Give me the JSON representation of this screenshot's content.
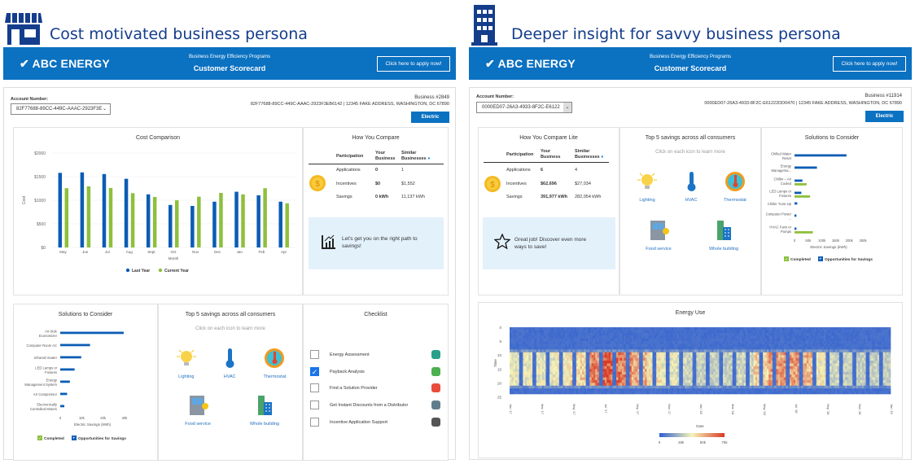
{
  "colors": {
    "brand_blue": "#0b71c1",
    "persona_title": "#143d8c",
    "last_year": "#0b5cb5",
    "current_year": "#8dc03c",
    "opportunities": "#0b5cb5",
    "completed": "#8dc03c",
    "promo_bg": "#e3f1fb"
  },
  "left": {
    "persona_icon": "storefront-icon",
    "persona_title": "Cost motivated business persona",
    "header": {
      "logo": "ABC ENERGY",
      "subtitle": "Business Energy Efficiency Programs",
      "title": "Customer Scorecard",
      "apply_button": "Click here to apply now!"
    },
    "account_label": "Account Number:",
    "account_value": "82F77688-89CC-449C-AAAC-2923F3E",
    "business_number": "Business #2849",
    "business_address": "82F77688-89CC-449C-AAAC-2923F3EB6142 | 12345 FAKE ADDRESS, WASHINGTON, DC 67890",
    "electric_button": "Electric",
    "cost_title": "Cost Comparison",
    "compare": {
      "title": "How You Compare",
      "headers": [
        "Participation",
        "Your Business",
        "Similar Businesses"
      ],
      "rows": [
        {
          "label": "Applications",
          "yours": "0",
          "similar": "1"
        },
        {
          "label": "Incentives",
          "yours": "$0",
          "similar": "$1,552"
        },
        {
          "label": "Savings",
          "yours": "0 kWh",
          "similar": "11,137 kWh"
        }
      ],
      "promo": "Let's get you on the right path to savings!",
      "promo_icon": "bar-chart-growth-icon"
    },
    "solutions_title": "Solutions to Consider",
    "top5": {
      "title": "Top 5 savings across all consumers",
      "hint": "Click on each icon to learn more",
      "items": [
        "Lighting",
        "HVAC",
        "Thermostat",
        "Food service",
        "Whole building"
      ]
    },
    "checklist": {
      "title": "Checklist",
      "items": [
        {
          "label": "Energy Assessment",
          "checked": false,
          "icon": "gauge-icon"
        },
        {
          "label": "Payback Analysis",
          "checked": true,
          "icon": "money-icon"
        },
        {
          "label": "Find a Solution Provider",
          "checked": false,
          "icon": "chat-icon"
        },
        {
          "label": "Get Instant Discounts from a Distributor",
          "checked": false,
          "icon": "register-icon"
        },
        {
          "label": "Incentive Application Support",
          "checked": false,
          "icon": "form-icon"
        }
      ]
    }
  },
  "right": {
    "persona_icon": "office-building-icon",
    "persona_title": "Deeper insight for savvy business persona",
    "header": {
      "logo": "ABC ENERGY",
      "subtitle": "Business Energy Efficiency Programs",
      "title": "Customer Scorecard",
      "apply_button": "Click here to apply now!"
    },
    "account_label": "Account Number:",
    "account_value": "0000ED07-26A3-4933-8F2C-E6122",
    "business_number": "Business #11914",
    "business_address": "0000ED07-26A3-4933-8F2C-E61222DD0470 | 12345 FAKE ADDRESS, WASHINGTON, DC 67890",
    "electric_button": "Electric",
    "compare": {
      "title": "How You Compare Lite",
      "headers": [
        "Participation",
        "Your Business",
        "Similar Businesses"
      ],
      "rows": [
        {
          "label": "Applications",
          "yours": "6",
          "similar": "4"
        },
        {
          "label": "Incentives",
          "yours": "$62,696",
          "similar": "$27,034"
        },
        {
          "label": "Savings",
          "yours": "391,977 kWh",
          "similar": "282,054 kWh"
        }
      ],
      "promo": "Great job! Discover even more ways to save!",
      "promo_icon": "star-icon"
    },
    "top5": {
      "title": "Top 5 savings across all consumers",
      "hint": "Click on each icon to learn more",
      "items": [
        "Lighting",
        "HVAC",
        "Thermostat",
        "Food service",
        "Whole building"
      ]
    },
    "solutions_title": "Solutions to Consider",
    "energy_title": "Energy Use"
  },
  "chart_data": [
    {
      "id": "cost",
      "type": "bar",
      "title": "Cost Comparison",
      "xlabel": "Month",
      "ylabel": "Cost",
      "ylim": [
        0,
        2000
      ],
      "yticks": [
        "$0",
        "$500",
        "$1000",
        "$1500",
        "$2000"
      ],
      "categories": [
        "May",
        "Jun",
        "Jul",
        "Aug",
        "Sept",
        "Oct",
        "Nov",
        "Dec",
        "Jan",
        "Feb",
        "Apr"
      ],
      "series": [
        {
          "name": "Last Year",
          "values": [
            1580,
            1590,
            1555,
            1455,
            1125,
            900,
            880,
            970,
            1180,
            1105,
            970
          ]
        },
        {
          "name": "Current Year",
          "values": [
            1255,
            1295,
            1260,
            1150,
            1070,
            1000,
            1075,
            1155,
            1125,
            1255,
            935
          ]
        }
      ],
      "legend": "bottom",
      "grid": true
    },
    {
      "id": "solutions-left",
      "type": "bar",
      "orientation": "horizontal",
      "xlabel": "Electric Savings (kWh)",
      "xlim": [
        0,
        30000
      ],
      "xticks": [
        "0",
        "10k",
        "20k",
        "30k"
      ],
      "categories": [
        "Air-Side Economizer",
        "Computer Room AC",
        "Infrared Heater",
        "LED Lamps or Fixtures",
        "Energy Management System",
        "Air Compressor",
        "Electronically Controlled Motors"
      ],
      "series": [
        {
          "name": "Opportunities for Savings",
          "values": [
            29600,
            13900,
            9800,
            6700,
            4500,
            3200,
            1900
          ]
        }
      ],
      "legend_items": [
        "Completed",
        "Opportunities for Savings"
      ],
      "legend": "bottom"
    },
    {
      "id": "solutions-right",
      "type": "bar",
      "orientation": "horizontal",
      "xlabel": "Electric Savings (kWh)",
      "xlim": [
        0,
        250000
      ],
      "xticks": [
        "0",
        "50k",
        "100k",
        "150k",
        "200k",
        "250k"
      ],
      "categories": [
        "Chilled Water Reset",
        "Energy Managema...",
        "Chiller – Air Cooled",
        "LED Lamps or Fixtures",
        "Chiller Tune-Up",
        "Computer Power ...",
        "HVAC Fans or Pumps"
      ],
      "series": [
        {
          "name": "Opportunities for Savings",
          "values": [
            190000,
            82000,
            29000,
            25000,
            10000,
            7000,
            7000
          ]
        },
        {
          "name": "Completed",
          "values": [
            0,
            0,
            44000,
            57000,
            0,
            0,
            67000
          ]
        }
      ],
      "legend_items": [
        "Completed",
        "Opportunities for Savings"
      ],
      "legend": "bottom"
    },
    {
      "id": "energy",
      "type": "heatmap",
      "title": "Energy Use",
      "xlabel": "Date",
      "ylabel": "Time",
      "ylim": [
        0,
        24
      ],
      "yticks": [
        "0",
        "5",
        "10",
        "15",
        "20",
        "25"
      ],
      "xticks": [
        "Jan '17",
        "Mar '17",
        "May '17",
        "Jul '17",
        "Sep '17",
        "Nov '17",
        "Jan '18",
        "Mar '18",
        "May '18",
        "Jul '18",
        "Sep '18",
        "Nov '18",
        "Jan '19"
      ],
      "months": [
        "Jan '17",
        "Feb '17",
        "Mar '17",
        "Apr '17",
        "May '17",
        "Jun '17",
        "Jul '17",
        "Aug '17",
        "Sep '17",
        "Oct '17",
        "Nov '17",
        "Dec '17",
        "Jan '18",
        "Feb '18",
        "Mar '18",
        "Apr '18",
        "May '18",
        "Jun '18",
        "Jul '18",
        "Aug '18",
        "Sep '18",
        "Oct '18",
        "Nov '18",
        "Dec '18",
        "Jan '19"
      ],
      "daytime_hours": [
        9,
        20
      ],
      "night_value": 4000,
      "daytime_value_by_month": [
        35000,
        35000,
        35000,
        38000,
        45000,
        60000,
        68000,
        62000,
        52000,
        40000,
        35000,
        30000,
        28000,
        28000,
        28000,
        30000,
        45000,
        55000,
        55000,
        50000,
        38000,
        30000,
        28000,
        28000,
        28000
      ],
      "colorscale": {
        "range": [
          0,
          75000
        ],
        "ticks": [
          "0",
          "25k",
          "50k",
          "75k"
        ],
        "colors": [
          "#2f5fd0",
          "#f6f3b8",
          "#d83a26"
        ]
      }
    }
  ]
}
